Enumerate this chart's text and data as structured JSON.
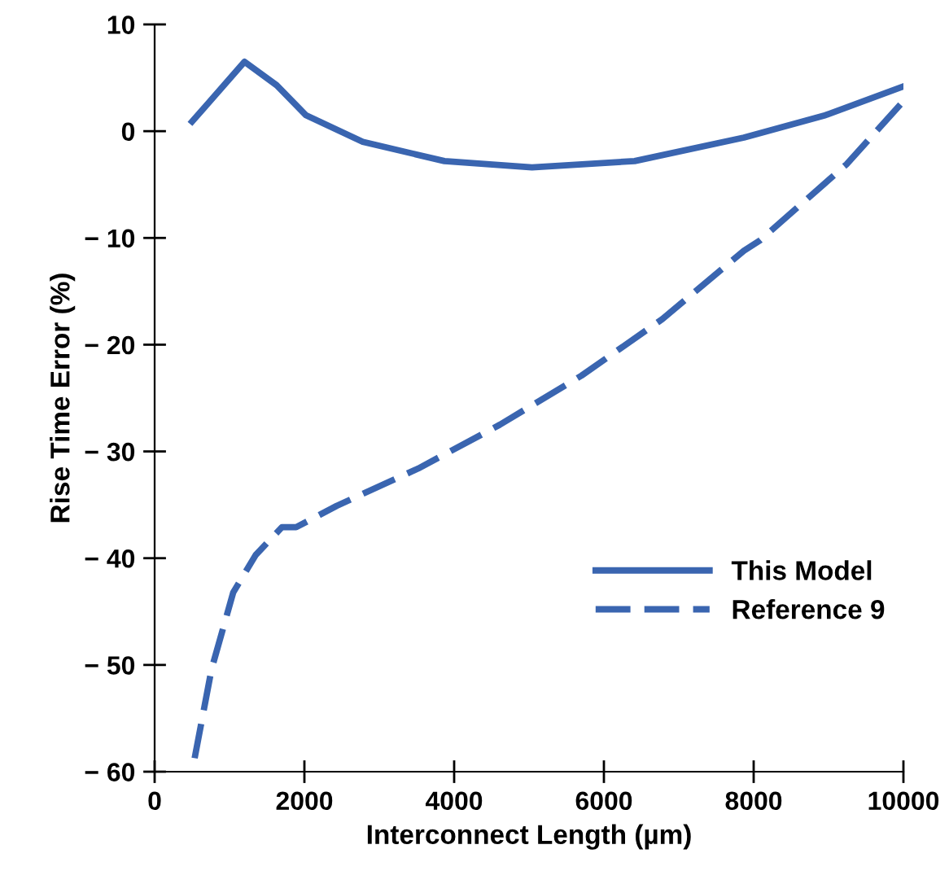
{
  "chart_data": {
    "type": "line",
    "xlabel": "Interconnect Length (µm)",
    "ylabel": "Rise Time Error (%)",
    "xlim": [
      0,
      10000
    ],
    "xticks": [
      0,
      2000,
      4000,
      6000,
      8000,
      10000
    ],
    "ylim": [
      -60,
      10
    ],
    "yticks": [
      {
        "value": -60,
        "label": "− 60"
      },
      {
        "value": -50,
        "label": "− 50"
      },
      {
        "value": -40,
        "label": "− 40"
      },
      {
        "value": -30,
        "label": "− 30"
      },
      {
        "value": -20,
        "label": "− 20"
      },
      {
        "value": -10,
        "label": "− 10"
      },
      0,
      10
    ],
    "legend": "right",
    "grid": false,
    "series": [
      {
        "name": "This Model",
        "color": "#3a65b0",
        "line_style": "solid",
        "x": [
          500,
          1200,
          1630,
          2020,
          2780,
          3870,
          5040,
          6410,
          7870,
          8960,
          10000
        ],
        "values": [
          0.9,
          6.5,
          4.3,
          1.5,
          -1.0,
          -2.8,
          -3.4,
          -2.8,
          -0.6,
          1.5,
          4.2
        ]
      },
      {
        "name": "Reference 9",
        "color": "#3a65b0",
        "line_style": "dashed",
        "x": [
          500,
          760,
          1050,
          1350,
          1700,
          1890,
          2430,
          3520,
          4610,
          5700,
          6780,
          7870,
          8090,
          9240,
          9960
        ],
        "values": [
          -60,
          -50.4,
          -43.2,
          -39.7,
          -37.1,
          -37.1,
          -35.1,
          -31.6,
          -27.5,
          -22.9,
          -17.6,
          -11.2,
          -10.2,
          -3.1,
          2.5
        ]
      }
    ]
  }
}
